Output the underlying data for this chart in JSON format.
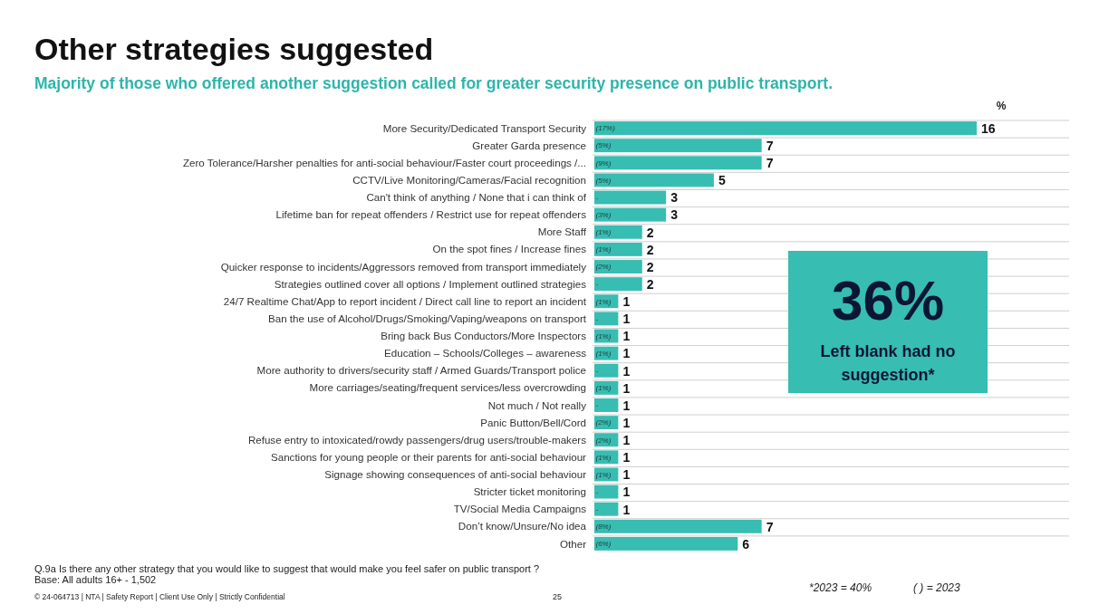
{
  "chart_data": {
    "type": "bar",
    "orientation": "horizontal",
    "title": "Other strategies suggested",
    "subtitle": "Majority of those who offered another suggestion called for greater security presence on public transport.",
    "xlabel": "%",
    "categories": [
      "More Security/Dedicated Transport Security",
      "Greater Garda presence",
      "Zero Tolerance/Harsher penalties for anti-social behaviour/Faster court proceedings /...",
      "CCTV/Live Monitoring/Cameras/Facial recognition",
      "Can't think of anything / None that i can think of",
      "Lifetime ban for repeat offenders / Restrict use for repeat offenders",
      "More Staff",
      "On the spot fines / Increase fines",
      "Quicker response to incidents/Aggressors removed from transport immediately",
      "Strategies outlined cover all options / Implement outlined strategies",
      "24/7 Realtime Chat/App to report incident / Direct call line to report an incident",
      "Ban the use of Alcohol/Drugs/Smoking/Vaping/weapons on transport",
      "Bring back Bus Conductors/More Inspectors",
      "Education – Schools/Colleges – awareness",
      "More authority to drivers/security staff / Armed Guards/Transport police",
      "More carriages/seating/frequent services/less overcrowding",
      "Not much / Not really",
      "Panic Button/Bell/Cord",
      "Refuse entry to intoxicated/rowdy passengers/drug users/trouble-makers",
      "Sanctions for young people or their parents for anti-social behaviour",
      "Signage showing consequences of anti-social behaviour",
      "Stricter ticket monitoring",
      "TV/Social Media Campaigns",
      "Don’t know/Unsure/No idea",
      "Other"
    ],
    "values": [
      16,
      7,
      7,
      5,
      3,
      3,
      2,
      2,
      2,
      2,
      1,
      1,
      1,
      1,
      1,
      1,
      1,
      1,
      1,
      1,
      1,
      1,
      1,
      7,
      6
    ],
    "color": "#37bdb1",
    "data_labels": true,
    "grid": "y",
    "annotations": [
      "36%",
      "Left blank had no suggestion*",
      "Q.9a Is there any other strategy that you would like to suggest that would make you feel safer on public transport ?",
      "Base: All adults 16+ - 1,502",
      "© 24-064713 | NTA | Safety Report | Client Use Only | Strictly Confidential",
      "25",
      "*2023 = 40%",
      "( ) = 2023",
      {
        "text": "(17%)",
        "y": "More Security/Dedicated Transport Security"
      },
      {
        "text": "(5%)",
        "y": "Greater Garda presence"
      },
      {
        "text": "(9%)",
        "y": "Zero Tolerance/Harsher penalties for anti-social behaviour/Faster court proceedings /..."
      },
      {
        "text": "(5%)",
        "y": "CCTV/Live Monitoring/Cameras/Facial recognition"
      },
      {
        "text": "-",
        "y": "Can't think of anything / None that i can think of"
      },
      {
        "text": "(3%)",
        "y": "Lifetime ban for repeat offenders / Restrict use for repeat offenders"
      },
      {
        "text": "(1%)",
        "y": "More Staff"
      },
      {
        "text": "(1%)",
        "y": "On the spot fines / Increase fines"
      },
      {
        "text": "(2%)",
        "y": "Quicker response to incidents/Aggressors removed from transport immediately"
      },
      {
        "text": "-",
        "y": "Strategies outlined cover all options / Implement outlined strategies"
      },
      {
        "text": "(1%)",
        "y": "24/7 Realtime Chat/App to report incident / Direct call line to report an incident"
      },
      {
        "text": "-",
        "y": "Ban the use of Alcohol/Drugs/Smoking/Vaping/weapons on transport"
      },
      {
        "text": "(1%)",
        "y": "Bring back Bus Conductors/More Inspectors"
      },
      {
        "text": "(1%)",
        "y": "Education – Schools/Colleges – awareness"
      },
      {
        "text": "-",
        "y": "More authority to drivers/security staff / Armed Guards/Transport police"
      },
      {
        "text": "(1%)",
        "y": "More carriages/seating/frequent services/less overcrowding"
      },
      {
        "text": "-",
        "y": "Not much / Not really"
      },
      {
        "text": "(2%)",
        "y": "Panic Button/Bell/Cord"
      },
      {
        "text": "(2%)",
        "y": "Refuse entry to intoxicated/rowdy passengers/drug users/trouble-makers"
      },
      {
        "text": "(1%)",
        "y": "Sanctions for young people or their parents for anti-social behaviour"
      },
      {
        "text": "(1%)",
        "y": "Signage showing consequences of anti-social behaviour"
      },
      {
        "text": "-",
        "y": "Stricter ticket monitoring"
      },
      {
        "text": "-",
        "y": "TV/Social Media Campaigns"
      },
      {
        "text": "(8%)",
        "y": "Don’t know/Unsure/No idea"
      },
      {
        "text": "(6%)",
        "y": "Other"
      }
    ]
  }
}
